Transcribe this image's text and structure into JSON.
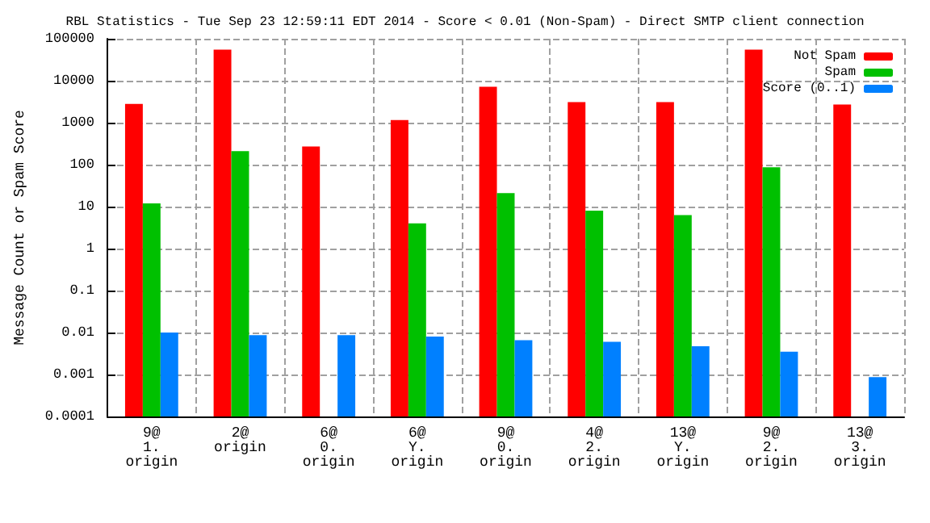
{
  "chart_data": {
    "type": "bar",
    "title": "RBL Statistics - Tue Sep 23 12:59:11 EDT 2014 - Score < 0.01 (Non-Spam) - Direct SMTP client connection",
    "ylabel": "Message Count or Spam Score",
    "categories": [
      "9@\n1.\norigin",
      "2@\norigin",
      "6@\n0.\norigin",
      "6@\nY.\norigin",
      "9@\n0.\norigin",
      "4@\n2.\norigin",
      "13@\nY.\norigin",
      "9@\n2.\norigin",
      "13@\n3.\norigin"
    ],
    "series": [
      {
        "name": "Not Spam",
        "color": "#ff0000",
        "values": [
          2800,
          55000,
          270,
          1150,
          7200,
          3100,
          3100,
          55000,
          2700
        ]
      },
      {
        "name": "Spam",
        "color": "#00c000",
        "values": [
          12,
          210,
          null,
          4,
          21,
          8,
          6.3,
          87,
          null
        ]
      },
      {
        "name": "Score (0..1)",
        "color": "#0080ff",
        "values": [
          0.01,
          0.0087,
          0.0087,
          0.008,
          0.0066,
          0.006,
          0.0047,
          0.0035,
          0.00087
        ]
      }
    ],
    "log": "y",
    "ylim": [
      0.0001,
      100000
    ],
    "yticks": [
      0.0001,
      0.001,
      0.01,
      0.1,
      1,
      10,
      100,
      1000,
      10000,
      100000
    ],
    "grid": true,
    "legend": "top right"
  }
}
